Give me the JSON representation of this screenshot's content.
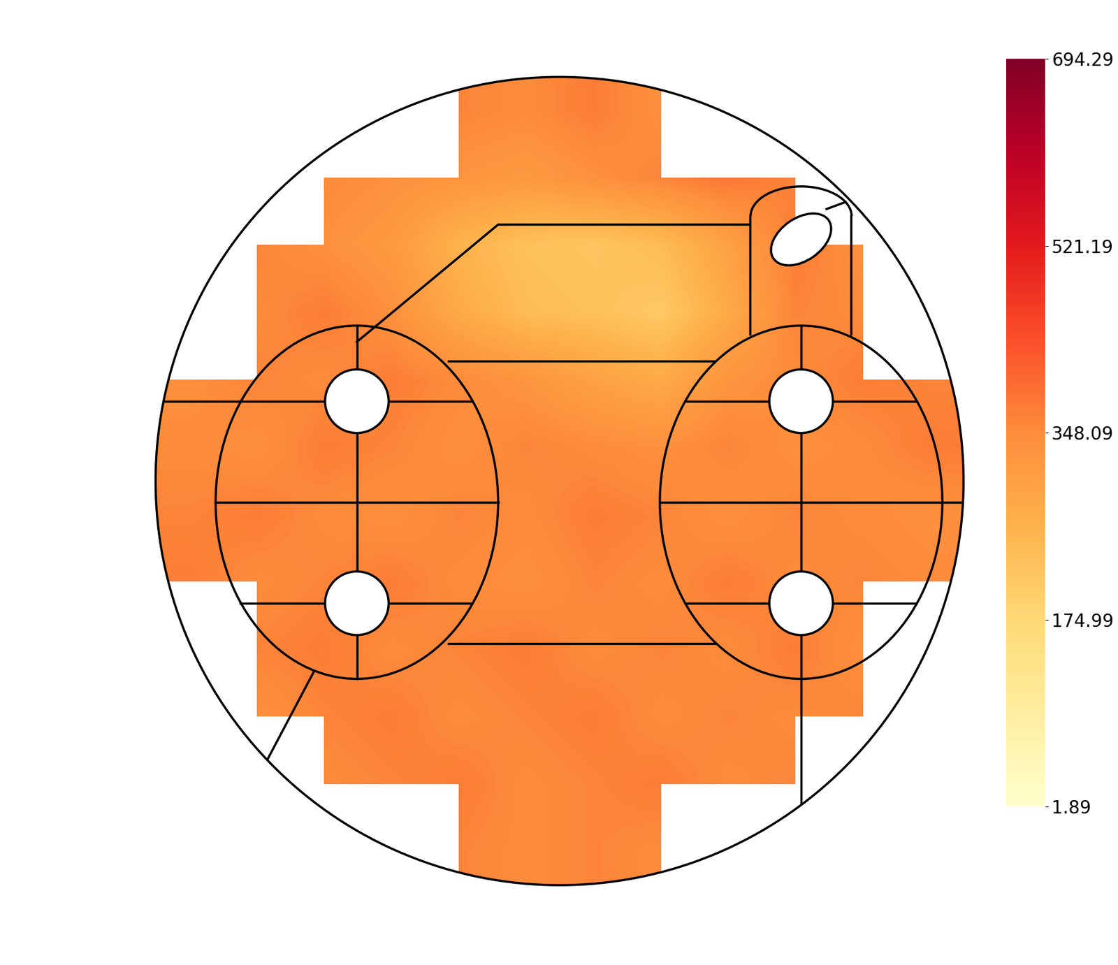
{
  "chart_data": {
    "type": "heatmap",
    "cells": [
      [
        null,
        null,
        null,
        null,
        360,
        350,
        370,
        340,
        null,
        null,
        null,
        null
      ],
      [
        null,
        null,
        350,
        340,
        330,
        320,
        340,
        360,
        380,
        360,
        null,
        null
      ],
      [
        null,
        360,
        340,
        320,
        260,
        230,
        220,
        240,
        300,
        370,
        340,
        null
      ],
      [
        null,
        350,
        370,
        340,
        280,
        240,
        230,
        210,
        280,
        360,
        350,
        null
      ],
      [
        340,
        360,
        350,
        370,
        350,
        330,
        300,
        280,
        330,
        350,
        370,
        360
      ],
      [
        350,
        340,
        370,
        360,
        340,
        360,
        350,
        340,
        360,
        340,
        350,
        370
      ],
      [
        360,
        370,
        350,
        340,
        360,
        350,
        370,
        360,
        340,
        360,
        350,
        340
      ],
      [
        370,
        350,
        360,
        370,
        350,
        340,
        360,
        350,
        370,
        350,
        360,
        350
      ],
      [
        null,
        360,
        370,
        350,
        360,
        370,
        350,
        360,
        350,
        370,
        340,
        null
      ],
      [
        null,
        340,
        360,
        370,
        350,
        360,
        370,
        350,
        360,
        350,
        360,
        null
      ],
      [
        null,
        null,
        350,
        360,
        370,
        350,
        360,
        370,
        350,
        360,
        null,
        null
      ],
      [
        null,
        null,
        null,
        null,
        360,
        350,
        360,
        350,
        null,
        null,
        null,
        null
      ]
    ],
    "colorbar": {
      "range": [
        1.89,
        694.29
      ],
      "ticks": [
        1.89,
        174.99,
        348.09,
        521.19,
        694.29
      ]
    },
    "tick_labels": false
  }
}
